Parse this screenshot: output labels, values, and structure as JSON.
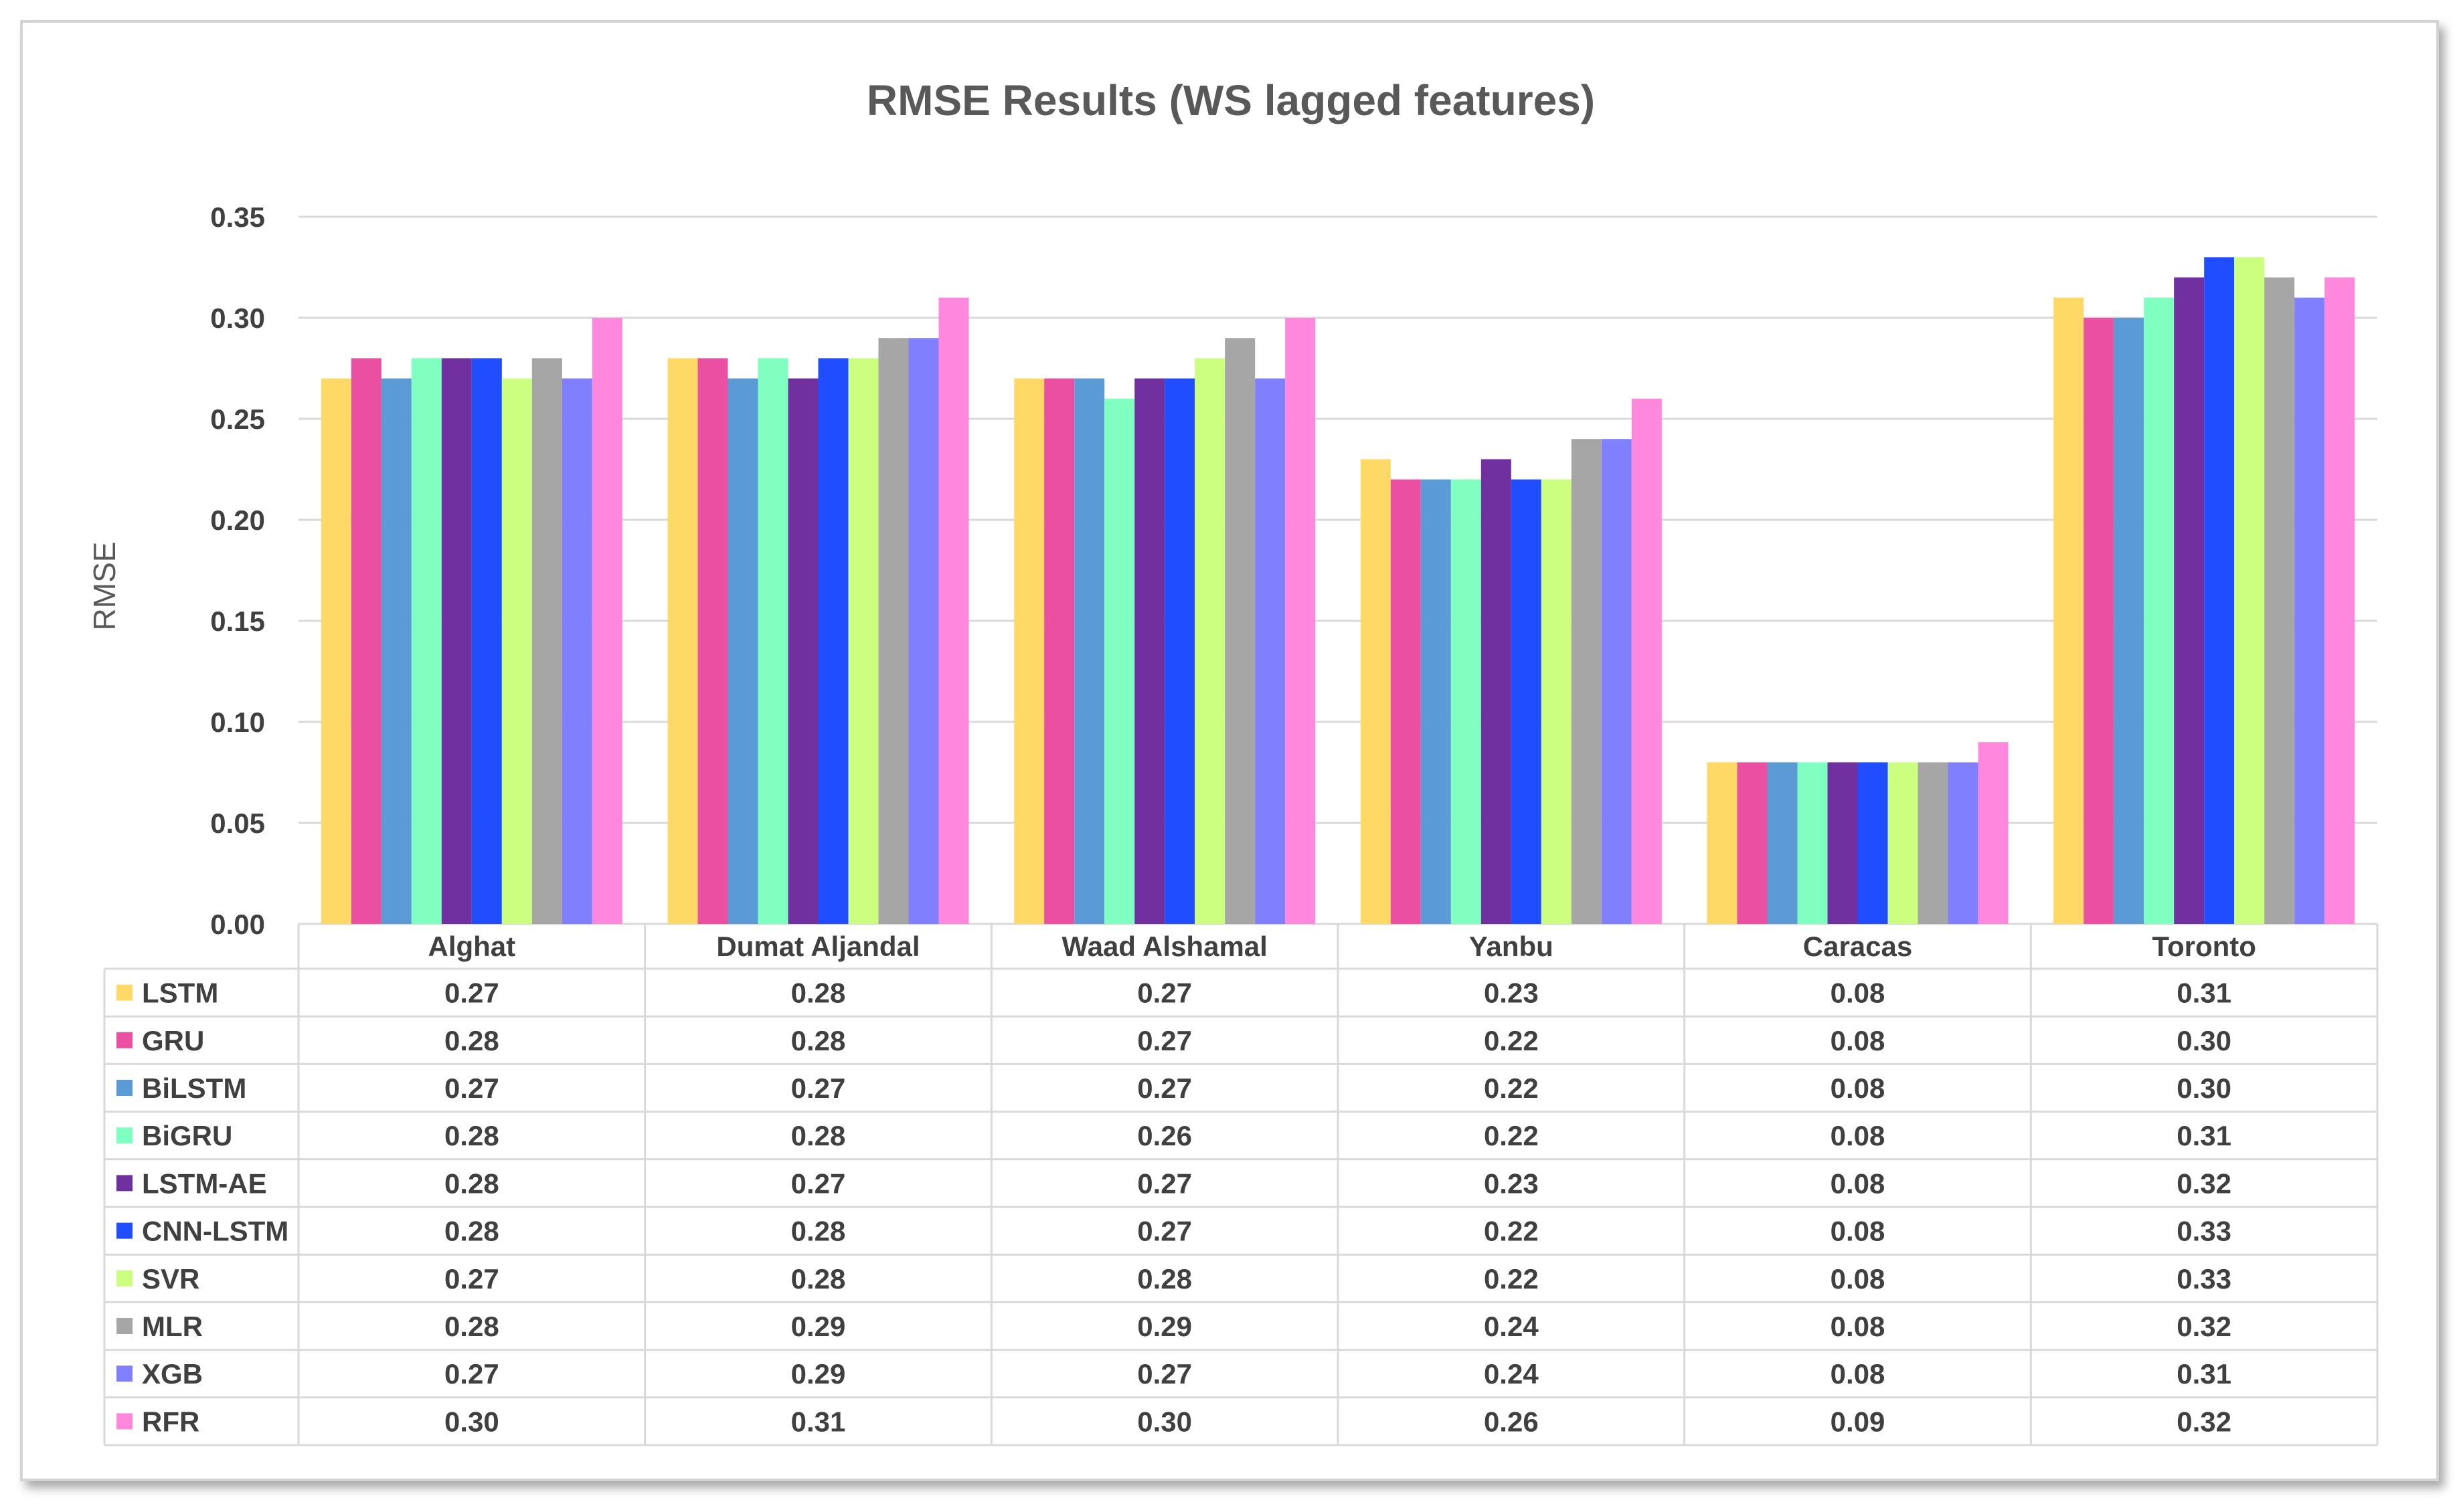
{
  "chart_data": {
    "type": "bar",
    "title": "RMSE Results (WS lagged features)",
    "xlabel": "",
    "ylabel": "RMSE",
    "ylim": [
      0,
      0.35
    ],
    "yticks": [
      "0.00",
      "0.05",
      "0.10",
      "0.15",
      "0.20",
      "0.25",
      "0.30",
      "0.35"
    ],
    "grid": true,
    "legend_placement": "data-table-left",
    "categories": [
      "Alghat",
      "Dumat Aljandal",
      "Waad Alshamal",
      "Yanbu",
      "Caracas",
      "Toronto"
    ],
    "series": [
      {
        "name": "LSTM",
        "color": "#FFD966",
        "values": [
          0.27,
          0.28,
          0.27,
          0.23,
          0.08,
          0.31
        ],
        "labels": [
          "0.27",
          "0.28",
          "0.27",
          "0.23",
          "0.08",
          "0.31"
        ]
      },
      {
        "name": "GRU",
        "color": "#EB4FA1",
        "values": [
          0.28,
          0.28,
          0.27,
          0.22,
          0.08,
          0.3
        ],
        "labels": [
          "0.28",
          "0.28",
          "0.27",
          "0.22",
          "0.08",
          "0.30"
        ]
      },
      {
        "name": "BiLSTM",
        "color": "#5B9BD5",
        "values": [
          0.27,
          0.27,
          0.27,
          0.22,
          0.08,
          0.3
        ],
        "labels": [
          "0.27",
          "0.27",
          "0.27",
          "0.22",
          "0.08",
          "0.30"
        ]
      },
      {
        "name": "BiGRU",
        "color": "#7FFFC0",
        "values": [
          0.28,
          0.28,
          0.26,
          0.22,
          0.08,
          0.31
        ],
        "labels": [
          "0.28",
          "0.28",
          "0.26",
          "0.22",
          "0.08",
          "0.31"
        ]
      },
      {
        "name": "LSTM-AE",
        "color": "#7030A0",
        "values": [
          0.28,
          0.27,
          0.27,
          0.23,
          0.08,
          0.32
        ],
        "labels": [
          "0.28",
          "0.27",
          "0.27",
          "0.23",
          "0.08",
          "0.32"
        ]
      },
      {
        "name": "CNN-LSTM",
        "color": "#1F4DFF",
        "values": [
          0.28,
          0.28,
          0.27,
          0.22,
          0.08,
          0.33
        ],
        "labels": [
          "0.28",
          "0.28",
          "0.27",
          "0.22",
          "0.08",
          "0.33"
        ]
      },
      {
        "name": "SVR",
        "color": "#CCFF80",
        "values": [
          0.27,
          0.28,
          0.28,
          0.22,
          0.08,
          0.33
        ],
        "labels": [
          "0.27",
          "0.28",
          "0.28",
          "0.22",
          "0.08",
          "0.33"
        ]
      },
      {
        "name": "MLR",
        "color": "#A6A6A6",
        "values": [
          0.28,
          0.29,
          0.29,
          0.24,
          0.08,
          0.32
        ],
        "labels": [
          "0.28",
          "0.29",
          "0.29",
          "0.24",
          "0.08",
          "0.32"
        ]
      },
      {
        "name": "XGB",
        "color": "#8080FF",
        "values": [
          0.27,
          0.29,
          0.27,
          0.24,
          0.08,
          0.31
        ],
        "labels": [
          "0.27",
          "0.29",
          "0.27",
          "0.24",
          "0.08",
          "0.31"
        ]
      },
      {
        "name": "RFR",
        "color": "#FF88DD",
        "values": [
          0.3,
          0.31,
          0.3,
          0.26,
          0.09,
          0.32
        ],
        "labels": [
          "0.30",
          "0.31",
          "0.30",
          "0.26",
          "0.09",
          "0.32"
        ]
      }
    ]
  }
}
